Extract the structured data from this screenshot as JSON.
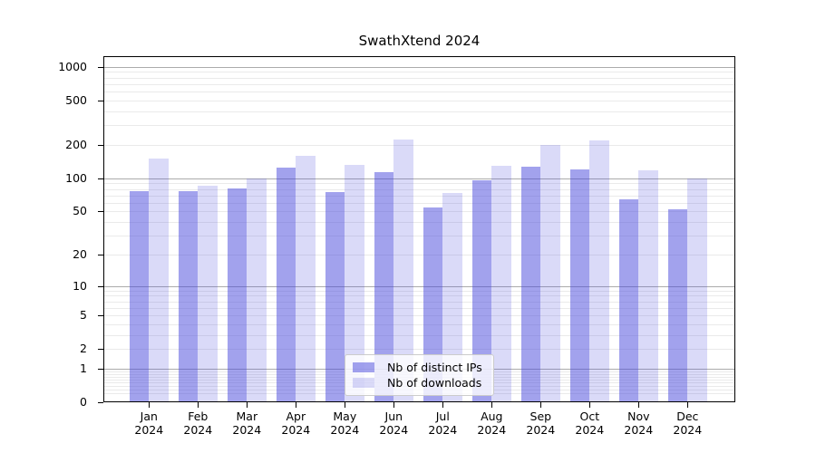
{
  "figure": {
    "title": "SwathXtend 2024"
  },
  "chart_data": {
    "type": "bar",
    "title": "SwathXtend 2024",
    "categories": [
      "Jan",
      "Feb",
      "Mar",
      "Apr",
      "May",
      "Jun",
      "Jul",
      "Aug",
      "Sep",
      "Oct",
      "Nov",
      "Dec"
    ],
    "x_sublabel": "2024",
    "series": [
      {
        "name": "Nb of distinct IPs",
        "color": "rgba(70,70,220,0.50)",
        "values": [
          77,
          77,
          81,
          125,
          75,
          113,
          54,
          96,
          126,
          121,
          64,
          52
        ]
      },
      {
        "name": "Nb of downloads",
        "color": "rgba(70,70,220,0.20)",
        "values": [
          150,
          85,
          100,
          158,
          132,
          222,
          74,
          130,
          199,
          218,
          118,
          100
        ]
      }
    ],
    "y_ticks": [
      0,
      1,
      2,
      5,
      10,
      20,
      50,
      100,
      200,
      500,
      1000
    ],
    "y_scale": "log1p",
    "ylim": [
      0,
      1245
    ],
    "grid": "both",
    "legend_position": "lower center"
  },
  "colors": {
    "bar_ips": "rgba(70,70,220,0.50)",
    "bar_downloads": "rgba(70,70,220,0.20)",
    "grid_major": "#ababab",
    "grid_minor": "#eaeaea",
    "axis": "#000000",
    "background": "#ffffff"
  }
}
